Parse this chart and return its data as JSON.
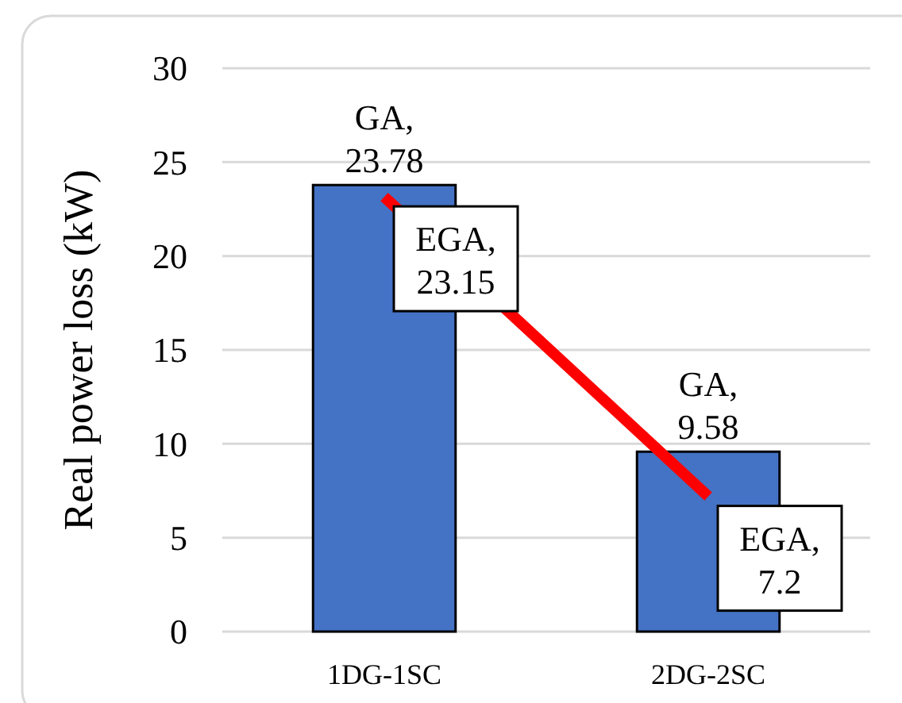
{
  "chart_data": {
    "type": "bar",
    "ylabel": "Real power loss (kW)",
    "categories": [
      "1DG-1SC",
      "2DG-2SC"
    ],
    "series": [
      {
        "color": "#4472c4",
        "values": [
          23.78,
          9.58
        ],
        "value_labels": [
          "GA, 23.78",
          "GA, 9.58"
        ]
      },
      {
        "type": "line",
        "color": "#ff0000",
        "values": [
          23.15,
          7.2
        ],
        "value_labels": [
          "EGA, 23.15",
          "EGA, 7.2"
        ]
      }
    ],
    "ylim": [
      0,
      30
    ],
    "yticks": [
      0,
      5,
      10,
      15,
      20,
      25,
      30
    ],
    "grid": "y"
  }
}
